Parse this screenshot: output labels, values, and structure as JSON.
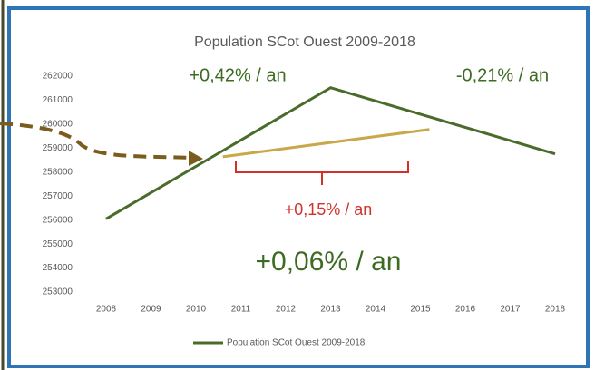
{
  "chart_data": {
    "type": "line",
    "title": "Population SCot Ouest 2009-2018",
    "categories": [
      "2008",
      "2009",
      "2010",
      "2011",
      "2012",
      "2013",
      "2014",
      "2015",
      "2016",
      "2017",
      "2018"
    ],
    "series": [
      {
        "name": "Population SCot Ouest 2009-2018",
        "color": "#4a6b2a",
        "values": [
          256050,
          257144,
          258238,
          259332,
          260426,
          261520,
          260968,
          260416,
          259864,
          259312,
          258760
        ]
      }
    ],
    "trend_line": {
      "color": "#c8a84a",
      "x": [
        2010.6,
        2015.2
      ],
      "values": [
        258640,
        259780
      ]
    },
    "ylim": [
      253000,
      262000
    ],
    "yticks": [
      253000,
      254000,
      255000,
      256000,
      257000,
      258000,
      259000,
      260000,
      261000,
      262000
    ],
    "annotations": [
      {
        "text": "+0,42% / an",
        "color": "#3d6b22"
      },
      {
        "text": "-0,21% / an",
        "color": "#3d6b22"
      },
      {
        "text": "+0,15% / an",
        "color": "#d0322a"
      },
      {
        "text": "+0,06% / an",
        "color": "#3d6b22"
      }
    ],
    "legend": "bottom"
  }
}
